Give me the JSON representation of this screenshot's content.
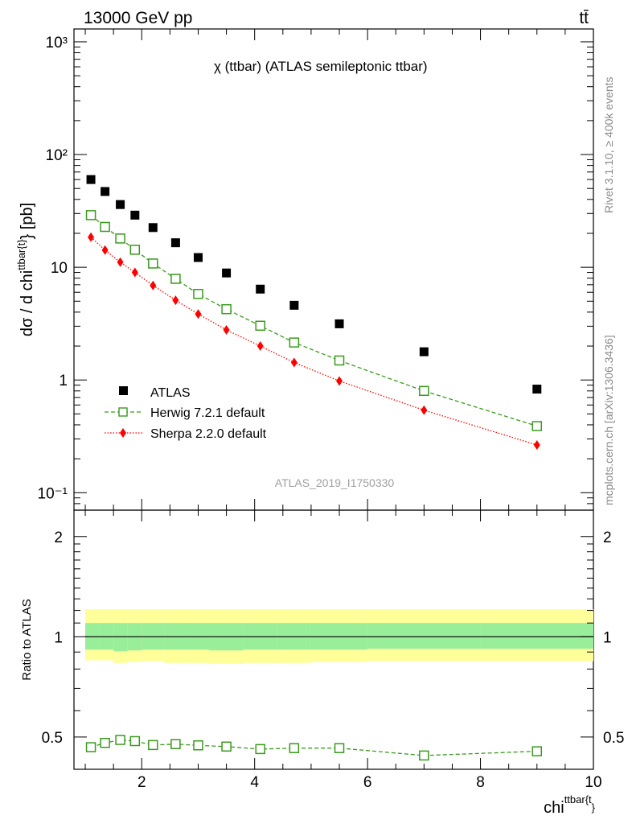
{
  "header": {
    "energy_label": "13000 GeV pp",
    "process_label": "tt̄"
  },
  "side": {
    "rivet_label": "Rivet 3.1.10, ≥ 400k events",
    "source_label": "mcplots.cern.ch [arXiv:1306.3436]"
  },
  "watermark": "ATLAS_2019_I1750330",
  "chart_data": [
    {
      "panel": "main",
      "type": "scatter",
      "title": "χ (ttbar) (ATLAS semileptonic ttbar)",
      "ylabel": "dσ / d chi^{ttbar{t}} [pb]",
      "xlim": [
        0.8,
        10.0
      ],
      "ylim": [
        0.07,
        1300
      ],
      "yscale": "log",
      "x": [
        1.1,
        1.35,
        1.62,
        1.88,
        2.2,
        2.6,
        3.0,
        3.5,
        4.1,
        4.7,
        5.5,
        7.0,
        9.0
      ],
      "series": [
        {
          "name": "ATLAS",
          "marker": "filled-square",
          "color": "#000000",
          "values": [
            60,
            47,
            36,
            29,
            22.5,
            16.5,
            12.2,
            8.9,
            6.4,
            4.6,
            3.15,
            1.78,
            0.83
          ]
        },
        {
          "name": "Herwig 7.2.1 default",
          "marker": "open-square",
          "line": "dashed",
          "color": "#3a9a1e",
          "values": [
            29,
            22.8,
            18,
            14.3,
            10.8,
            7.9,
            5.8,
            4.25,
            3.03,
            2.15,
            1.49,
            0.8,
            0.39
          ]
        },
        {
          "name": "Sherpa 2.2.0 default",
          "marker": "diamond",
          "line": "dotted",
          "color": "#ff0000",
          "values": [
            18.5,
            14.2,
            11.1,
            9.0,
            6.9,
            5.1,
            3.85,
            2.78,
            2.0,
            1.43,
            0.98,
            0.54,
            0.265
          ]
        }
      ],
      "yticks": [
        "10⁻¹",
        "1",
        "10",
        "10²",
        "10³"
      ],
      "legend": "lower-left"
    },
    {
      "panel": "ratio",
      "type": "line",
      "ylabel": "Ratio to ATLAS",
      "xlabel": "chi^{ttbar{t}}",
      "xlim": [
        0.8,
        10.0
      ],
      "ylim": [
        0.4,
        2.4
      ],
      "yscale": "log",
      "xticks": [
        "2",
        "4",
        "6",
        "8",
        "10"
      ],
      "yticks": [
        "0.5",
        "1",
        "2"
      ],
      "x": [
        1.1,
        1.35,
        1.62,
        1.88,
        2.2,
        2.6,
        3.0,
        3.5,
        4.1,
        4.7,
        5.5,
        7.0,
        9.0
      ],
      "series": [
        {
          "name": "Herwig 7.2.1 default",
          "marker": "open-square",
          "line": "dashed",
          "color": "#3a9a1e",
          "values": [
            0.466,
            0.48,
            0.49,
            0.486,
            0.473,
            0.476,
            0.472,
            0.468,
            0.46,
            0.463,
            0.463,
            0.44,
            0.453
          ]
        }
      ],
      "band_x": [
        1.0,
        1.25,
        1.5,
        1.75,
        2.0,
        2.4,
        2.8,
        3.2,
        3.8,
        4.4,
        5.0,
        6.0,
        8.0,
        10.0
      ],
      "band_green": [
        [
          0.915,
          1.1
        ],
        [
          0.915,
          1.1
        ],
        [
          0.905,
          1.1
        ],
        [
          0.91,
          1.1
        ],
        [
          0.915,
          1.1
        ],
        [
          0.915,
          1.1
        ],
        [
          0.915,
          1.1
        ],
        [
          0.91,
          1.1
        ],
        [
          0.915,
          1.1
        ],
        [
          0.915,
          1.1
        ],
        [
          0.915,
          1.1
        ],
        [
          0.92,
          1.1
        ],
        [
          0.92,
          1.1
        ]
      ],
      "band_yellow": [
        [
          0.85,
          1.21
        ],
        [
          0.85,
          1.21
        ],
        [
          0.835,
          1.21
        ],
        [
          0.84,
          1.21
        ],
        [
          0.845,
          1.21
        ],
        [
          0.835,
          1.21
        ],
        [
          0.835,
          1.21
        ],
        [
          0.83,
          1.21
        ],
        [
          0.835,
          1.21
        ],
        [
          0.835,
          1.21
        ],
        [
          0.84,
          1.21
        ],
        [
          0.845,
          1.21
        ],
        [
          0.845,
          1.21
        ]
      ],
      "reference_line": 1.0,
      "band_colors": {
        "green": "#99ee99",
        "yellow": "#ffff99"
      }
    }
  ]
}
